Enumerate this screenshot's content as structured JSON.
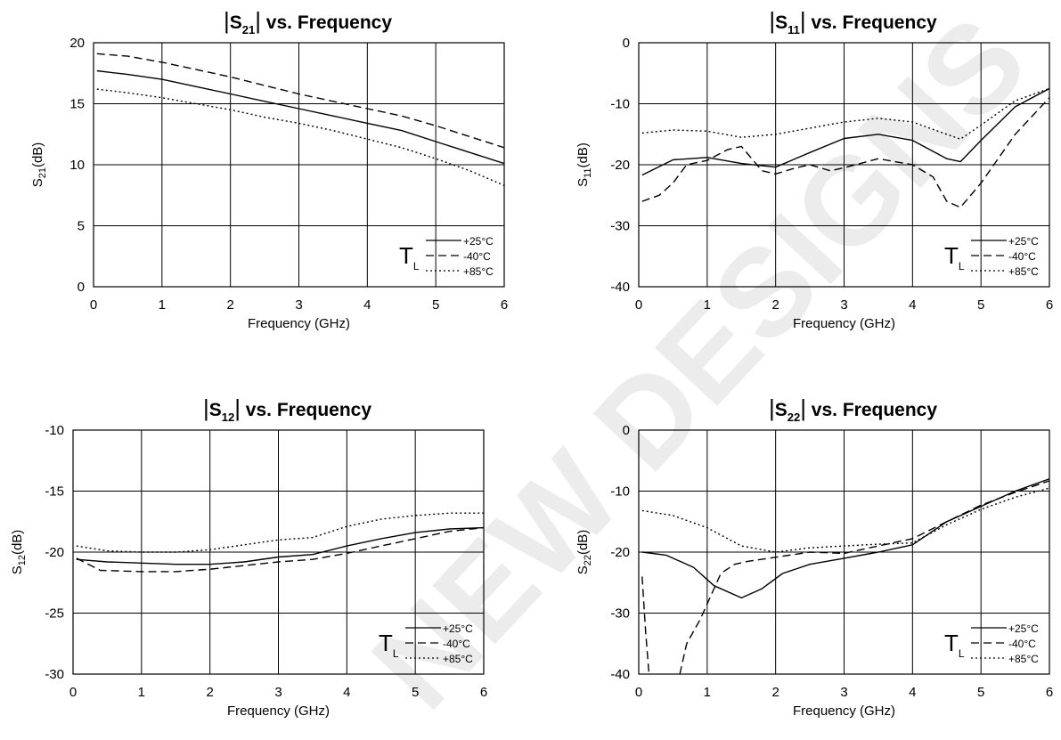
{
  "watermark": "NEW DESIGNS",
  "legend": {
    "t_symbol": "T",
    "t_sub": "L"
  },
  "chart_data": [
    {
      "id": "s21",
      "type": "line",
      "title": {
        "pre": "S",
        "sub": "21",
        "post": "vs. Frequency"
      },
      "ylabel": {
        "pre": "S",
        "sub": "21",
        "post": "(dB)"
      },
      "xlabel": "Frequency (GHz)",
      "xlim": [
        0,
        6
      ],
      "ylim": [
        0,
        20
      ],
      "xticks": [
        "0",
        "1",
        "2",
        "3",
        "4",
        "5",
        "6"
      ],
      "yticks": [
        "0",
        "5",
        "10",
        "15",
        "20"
      ],
      "grid": true,
      "legend_position": "bottom-right",
      "series": [
        {
          "name": "+25°C",
          "style": "solid",
          "points": [
            [
              0.05,
              17.7
            ],
            [
              0.5,
              17.4
            ],
            [
              1,
              17.0
            ],
            [
              1.5,
              16.4
            ],
            [
              2,
              15.8
            ],
            [
              2.5,
              15.2
            ],
            [
              3,
              14.6
            ],
            [
              3.5,
              14.0
            ],
            [
              4,
              13.4
            ],
            [
              4.5,
              12.8
            ],
            [
              5,
              11.9
            ],
            [
              5.5,
              11.0
            ],
            [
              6,
              10.1
            ]
          ]
        },
        {
          "name": "-40°C",
          "style": "dashed",
          "points": [
            [
              0.05,
              19.1
            ],
            [
              0.5,
              18.9
            ],
            [
              1,
              18.4
            ],
            [
              1.5,
              17.8
            ],
            [
              2,
              17.2
            ],
            [
              2.5,
              16.5
            ],
            [
              3,
              15.8
            ],
            [
              3.5,
              15.2
            ],
            [
              4,
              14.6
            ],
            [
              4.5,
              14.0
            ],
            [
              5,
              13.2
            ],
            [
              5.5,
              12.3
            ],
            [
              6,
              11.4
            ]
          ]
        },
        {
          "name": "+85°C",
          "style": "dotted",
          "points": [
            [
              0.05,
              16.2
            ],
            [
              0.5,
              15.9
            ],
            [
              1,
              15.5
            ],
            [
              1.5,
              15.0
            ],
            [
              2,
              14.5
            ],
            [
              2.5,
              13.9
            ],
            [
              3,
              13.4
            ],
            [
              3.5,
              12.8
            ],
            [
              4,
              12.1
            ],
            [
              4.5,
              11.4
            ],
            [
              5,
              10.5
            ],
            [
              5.5,
              9.5
            ],
            [
              6,
              8.3
            ]
          ]
        }
      ]
    },
    {
      "id": "s11",
      "type": "line",
      "title": {
        "pre": "S",
        "sub": "11",
        "post": "vs. Frequency"
      },
      "ylabel": {
        "pre": "S",
        "sub": "11",
        "post": "(dB)"
      },
      "xlabel": "Frequency (GHz)",
      "xlim": [
        0,
        6
      ],
      "ylim": [
        -40,
        0
      ],
      "xticks": [
        "0",
        "1",
        "2",
        "3",
        "4",
        "5",
        "6"
      ],
      "yticks": [
        "-40",
        "-30",
        "-20",
        "-10",
        "0"
      ],
      "grid": true,
      "legend_position": "bottom-right",
      "series": [
        {
          "name": "+25°C",
          "style": "solid",
          "points": [
            [
              0.05,
              -21.7
            ],
            [
              0.5,
              -19.2
            ],
            [
              1,
              -18.8
            ],
            [
              1.5,
              -19.8
            ],
            [
              2,
              -20.4
            ],
            [
              2.5,
              -18.0
            ],
            [
              3,
              -15.7
            ],
            [
              3.5,
              -15.0
            ],
            [
              4,
              -16.0
            ],
            [
              4.5,
              -19.0
            ],
            [
              4.7,
              -19.5
            ],
            [
              5,
              -16.0
            ],
            [
              5.5,
              -10.5
            ],
            [
              6,
              -7.5
            ]
          ]
        },
        {
          "name": "-40°C",
          "style": "dashed",
          "points": [
            [
              0.05,
              -26.0
            ],
            [
              0.3,
              -25.0
            ],
            [
              0.5,
              -23.0
            ],
            [
              0.7,
              -20.0
            ],
            [
              1,
              -19.3
            ],
            [
              1.3,
              -17.5
            ],
            [
              1.5,
              -17.0
            ],
            [
              1.8,
              -21.0
            ],
            [
              2,
              -21.5
            ],
            [
              2.3,
              -20.5
            ],
            [
              2.5,
              -20.0
            ],
            [
              2.8,
              -21.0
            ],
            [
              3,
              -20.5
            ],
            [
              3.5,
              -19.0
            ],
            [
              4,
              -20.0
            ],
            [
              4.3,
              -22.0
            ],
            [
              4.5,
              -26.0
            ],
            [
              4.7,
              -27.0
            ],
            [
              5,
              -23.0
            ],
            [
              5.5,
              -15.0
            ],
            [
              6,
              -9.0
            ]
          ]
        },
        {
          "name": "+85°C",
          "style": "dotted",
          "points": [
            [
              0.05,
              -14.8
            ],
            [
              0.5,
              -14.3
            ],
            [
              1,
              -14.5
            ],
            [
              1.5,
              -15.5
            ],
            [
              2,
              -15.0
            ],
            [
              2.5,
              -14.0
            ],
            [
              3,
              -13.0
            ],
            [
              3.5,
              -12.4
            ],
            [
              4,
              -13.0
            ],
            [
              4.5,
              -15.0
            ],
            [
              4.7,
              -15.8
            ],
            [
              5,
              -13.5
            ],
            [
              5.5,
              -9.5
            ],
            [
              6,
              -7.5
            ]
          ]
        }
      ]
    },
    {
      "id": "s12",
      "type": "line",
      "title": {
        "pre": "S",
        "sub": "12",
        "post": "vs. Frequency"
      },
      "ylabel": {
        "pre": "S",
        "sub": "12",
        "post": "(dB)"
      },
      "xlabel": "Frequency (GHz)",
      "xlim": [
        0,
        6
      ],
      "ylim": [
        -30,
        -10
      ],
      "xticks": [
        "0",
        "1",
        "2",
        "3",
        "4",
        "5",
        "6"
      ],
      "yticks": [
        "-30",
        "-25",
        "-20",
        "-15",
        "-10"
      ],
      "grid": true,
      "legend_position": "bottom-right",
      "series": [
        {
          "name": "+25°C",
          "style": "solid",
          "points": [
            [
              0.05,
              -20.6
            ],
            [
              0.5,
              -20.8
            ],
            [
              1,
              -20.9
            ],
            [
              1.5,
              -21.0
            ],
            [
              2,
              -21.0
            ],
            [
              2.5,
              -20.8
            ],
            [
              3,
              -20.4
            ],
            [
              3.5,
              -20.2
            ],
            [
              4,
              -19.5
            ],
            [
              4.5,
              -18.9
            ],
            [
              5,
              -18.4
            ],
            [
              5.5,
              -18.1
            ],
            [
              6,
              -18.0
            ]
          ]
        },
        {
          "name": "-40°C",
          "style": "dashed",
          "points": [
            [
              0.05,
              -20.5
            ],
            [
              0.4,
              -21.5
            ],
            [
              1,
              -21.6
            ],
            [
              1.5,
              -21.6
            ],
            [
              2,
              -21.4
            ],
            [
              2.5,
              -21.1
            ],
            [
              3,
              -20.8
            ],
            [
              3.5,
              -20.6
            ],
            [
              4,
              -20.1
            ],
            [
              4.5,
              -19.5
            ],
            [
              5,
              -18.9
            ],
            [
              5.5,
              -18.3
            ],
            [
              6,
              -18.0
            ]
          ]
        },
        {
          "name": "+85°C",
          "style": "dotted",
          "points": [
            [
              0.05,
              -19.5
            ],
            [
              0.5,
              -19.9
            ],
            [
              1,
              -20.0
            ],
            [
              1.5,
              -20.0
            ],
            [
              2,
              -19.8
            ],
            [
              2.5,
              -19.4
            ],
            [
              3,
              -19.0
            ],
            [
              3.5,
              -18.8
            ],
            [
              4,
              -17.9
            ],
            [
              4.5,
              -17.3
            ],
            [
              5,
              -17.0
            ],
            [
              5.5,
              -16.8
            ],
            [
              6,
              -16.8
            ]
          ]
        }
      ]
    },
    {
      "id": "s22",
      "type": "line",
      "title": {
        "pre": "S",
        "sub": "22",
        "post": "vs. Frequency"
      },
      "ylabel": {
        "pre": "S",
        "sub": "22",
        "post": "(dB)"
      },
      "xlabel": "Frequency (GHz)",
      "xlim": [
        0,
        6
      ],
      "ylim": [
        -40,
        0
      ],
      "xticks": [
        "0",
        "1",
        "2",
        "3",
        "4",
        "5",
        "6"
      ],
      "yticks": [
        "-40",
        "-30",
        "-20",
        "-10",
        "0"
      ],
      "grid": true,
      "legend_position": "bottom-right",
      "series": [
        {
          "name": "+25°C",
          "style": "solid",
          "points": [
            [
              0.05,
              -20.0
            ],
            [
              0.4,
              -20.5
            ],
            [
              0.8,
              -22.5
            ],
            [
              1.1,
              -25.5
            ],
            [
              1.5,
              -27.5
            ],
            [
              1.8,
              -26.0
            ],
            [
              2.1,
              -23.5
            ],
            [
              2.5,
              -22.0
            ],
            [
              3,
              -21.0
            ],
            [
              3.5,
              -20.0
            ],
            [
              4,
              -18.8
            ],
            [
              4.5,
              -15.0
            ],
            [
              5,
              -12.5
            ],
            [
              5.5,
              -10.0
            ],
            [
              6,
              -8.0
            ]
          ]
        },
        {
          "name": "-40°C",
          "style": "dashed",
          "points": [
            [
              0.05,
              -24.0
            ],
            [
              0.1,
              -33.0
            ],
            [
              0.15,
              -40.0
            ],
            null,
            [
              0.6,
              -40.0
            ],
            [
              0.7,
              -35.0
            ],
            [
              0.9,
              -31.0
            ],
            [
              1.0,
              -28.5
            ],
            [
              1.2,
              -23.5
            ],
            [
              1.4,
              -22.0
            ],
            [
              1.6,
              -21.5
            ],
            [
              1.9,
              -21.0
            ],
            [
              2.5,
              -20.0
            ],
            [
              3,
              -20.2
            ],
            [
              3.5,
              -19.0
            ],
            [
              4,
              -17.8
            ],
            [
              4.5,
              -15.0
            ],
            [
              5,
              -12.3
            ],
            [
              5.5,
              -10.2
            ],
            [
              6,
              -8.3
            ]
          ]
        },
        {
          "name": "+85°C",
          "style": "dotted",
          "points": [
            [
              0.05,
              -13.2
            ],
            [
              0.5,
              -14.0
            ],
            [
              1,
              -16.0
            ],
            [
              1.5,
              -19.0
            ],
            [
              2,
              -20.0
            ],
            [
              2.5,
              -19.3
            ],
            [
              3,
              -19.0
            ],
            [
              3.5,
              -18.7
            ],
            [
              4,
              -18.5
            ],
            [
              4.5,
              -15.5
            ],
            [
              5,
              -13.0
            ],
            [
              5.5,
              -11.0
            ],
            [
              6,
              -9.5
            ]
          ]
        }
      ]
    }
  ]
}
